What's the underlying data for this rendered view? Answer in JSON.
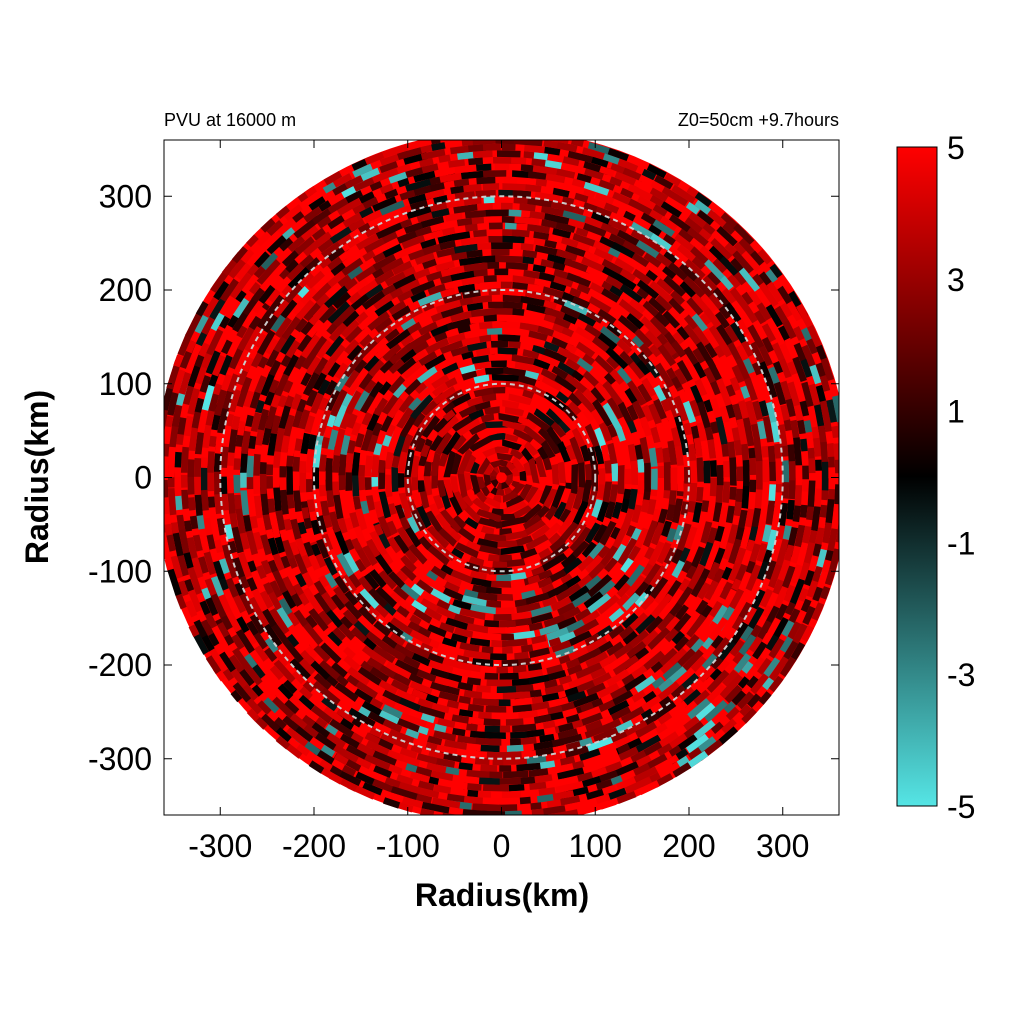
{
  "chart_data": {
    "type": "heatmap",
    "title": "PVU at 16000 m",
    "subtitle": "Z0=50cm  +9.7hours",
    "xlabel": "Radius(km)",
    "ylabel": "Radius(km)",
    "xlim": [
      -360,
      360
    ],
    "ylim": [
      -360,
      360
    ],
    "x_ticks": [
      -300,
      -200,
      -100,
      0,
      100,
      200,
      300
    ],
    "y_ticks": [
      300,
      200,
      100,
      0,
      -100,
      -200,
      -300
    ],
    "x_tick_labels": [
      "-300",
      "-200",
      "-100",
      "0",
      "100",
      "200",
      "300"
    ],
    "y_tick_labels": [
      "300",
      "200",
      "100",
      "0",
      "-100",
      "-200",
      "-300"
    ],
    "domain_radius": 370,
    "range_rings": [
      100,
      200,
      300
    ],
    "colorbar": {
      "min": -5,
      "max": 5,
      "ticks": [
        5,
        3,
        1,
        -1,
        -3,
        -5
      ],
      "tick_labels": [
        "5",
        "3",
        "1",
        "-1",
        "-3",
        "-5"
      ],
      "colors": [
        "#55e5e5",
        "#000000",
        "#ff0000"
      ]
    },
    "field_summary": "Mostly positive PV (red, 3 to 5) with scattered dark and negative (cyan) patches, concentrated at radii 100-200 km toward the south-east and outer edge",
    "grid": false,
    "legend": "colorbar-right"
  },
  "colors": {
    "positive": "#ff0000",
    "zero": "#000000",
    "negative": "#55e5e5",
    "ring": "#cccccc"
  }
}
